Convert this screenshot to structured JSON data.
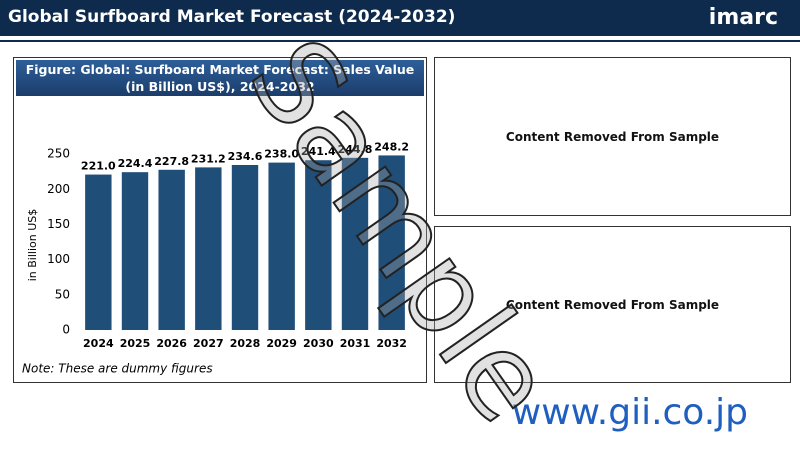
{
  "header": {
    "title": "Global Surfboard Market Forecast (2024-2032)",
    "logo": "imarc"
  },
  "chart_data": {
    "type": "bar",
    "title": "Figure: Global: Surfboard Market Forecast: Sales Value (in Billion US$), 2024-2032",
    "y_label": "in Billion US$",
    "categories": [
      "2024",
      "2025",
      "2026",
      "2027",
      "2028",
      "2029",
      "2030",
      "2031",
      "2032"
    ],
    "values": [
      221.0,
      224.4,
      227.8,
      231.2,
      234.6,
      238.0,
      241.4,
      244.8,
      248.2
    ],
    "value_labels": [
      "221.0",
      "224.4",
      "227.8",
      "231.2",
      "234.6",
      "238.0",
      "241.4",
      "244.8",
      "248.2"
    ],
    "color": "#1f4e79",
    "ylim": [
      0,
      300
    ],
    "yticks": [
      0,
      50,
      100,
      150,
      200,
      250
    ],
    "grid": false,
    "note": "Note: These are dummy figures"
  },
  "panels": [
    "Content Removed From Sample",
    "Content Removed From Sample"
  ],
  "watermark": "Sample",
  "footer": "www.gii.co.jp"
}
